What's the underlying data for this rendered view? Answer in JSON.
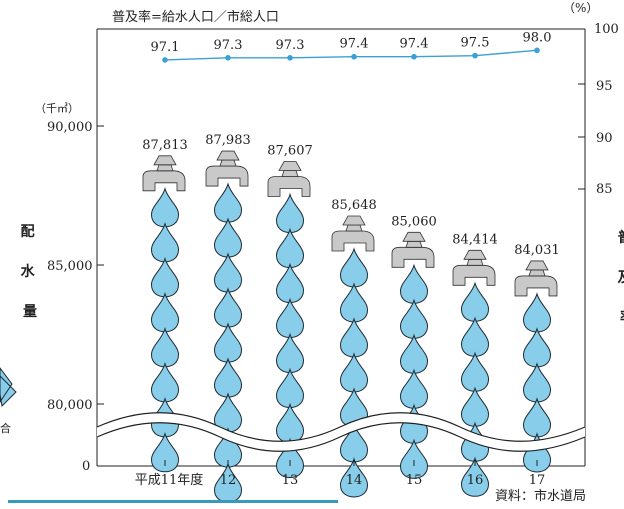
{
  "chart_data": {
    "type": "bar",
    "categories": [
      "平成11年度",
      "12",
      "13",
      "14",
      "15",
      "16",
      "17"
    ],
    "series": [
      {
        "name": "配水量",
        "values": [
          87813,
          87983,
          87607,
          85648,
          85060,
          84414,
          84031
        ]
      },
      {
        "name": "普及率",
        "values": [
          97.1,
          97.3,
          97.3,
          97.4,
          97.4,
          97.5,
          98.0
        ]
      }
    ],
    "top_note": "普及率=給水人口／市総人口",
    "left_axis": {
      "unit": "（千㎥）",
      "label": "配水量",
      "ticks": [
        "0",
        "80,000",
        "85,000",
        "90,000"
      ]
    },
    "right_axis": {
      "unit": "（%）",
      "label": "普及率",
      "ticks": [
        "85",
        "90",
        "95",
        "100"
      ]
    },
    "left_partial_text": "合",
    "source": "資料：市水道局"
  },
  "colors": {
    "drop": "#88cdea",
    "rate_line": "#3aa0d8",
    "tap": "#c9c9c9",
    "rule": "#3a97bd"
  }
}
